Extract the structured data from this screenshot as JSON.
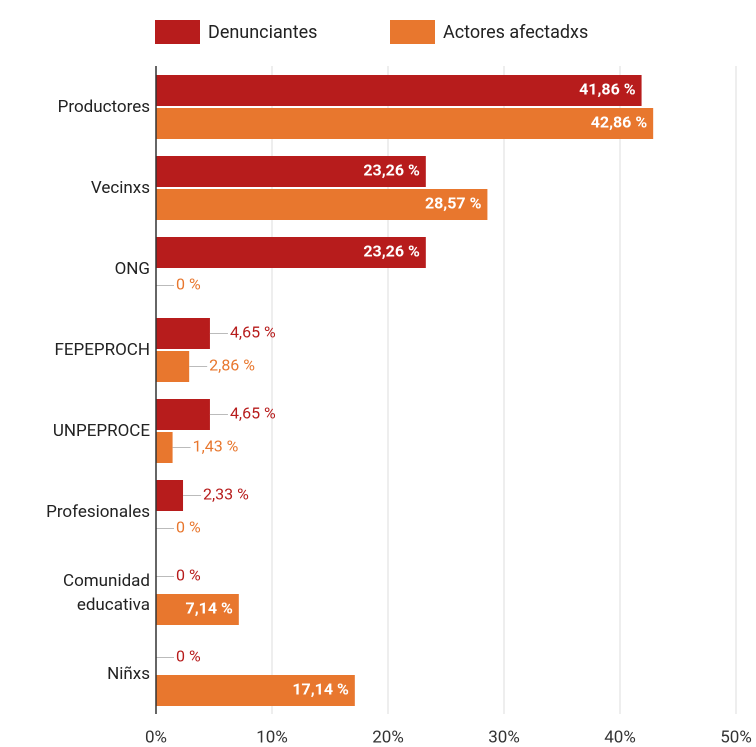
{
  "chart_data": {
    "type": "bar",
    "orientation": "horizontal",
    "categories": [
      "Productores",
      "Vecinxs",
      "ONG",
      "FEPEPROCH",
      "UNPEPROCE",
      "Profesionales",
      "Comunidad educativa",
      "Niñxs"
    ],
    "series": [
      {
        "name": "Denunciantes",
        "color": "#b71c1c",
        "values": [
          41.86,
          23.26,
          23.26,
          4.65,
          4.65,
          2.33,
          0,
          0
        ],
        "value_labels": [
          "41,86 %",
          "23,26 %",
          "23,26 %",
          "4,65 %",
          "4,65 %",
          "2,33 %",
          "0 %",
          "0 %"
        ]
      },
      {
        "name": "Actores afectadxs",
        "color": "#e8772e",
        "values": [
          42.86,
          28.57,
          0,
          2.86,
          1.43,
          0,
          7.14,
          17.14
        ],
        "value_labels": [
          "42,86 %",
          "28,57 %",
          "0 %",
          "2,86 %",
          "1,43 %",
          "0 %",
          "7,14 %",
          "17,14 %"
        ]
      }
    ],
    "xlim": [
      0,
      50
    ],
    "xticks": [
      {
        "value": 0,
        "label": "0%"
      },
      {
        "value": 10,
        "label": "10%"
      },
      {
        "value": 20,
        "label": "20%"
      },
      {
        "value": 30,
        "label": "30%"
      },
      {
        "value": 40,
        "label": "40%"
      },
      {
        "value": 50,
        "label": "50%"
      }
    ],
    "grid": true,
    "legend": "top"
  }
}
